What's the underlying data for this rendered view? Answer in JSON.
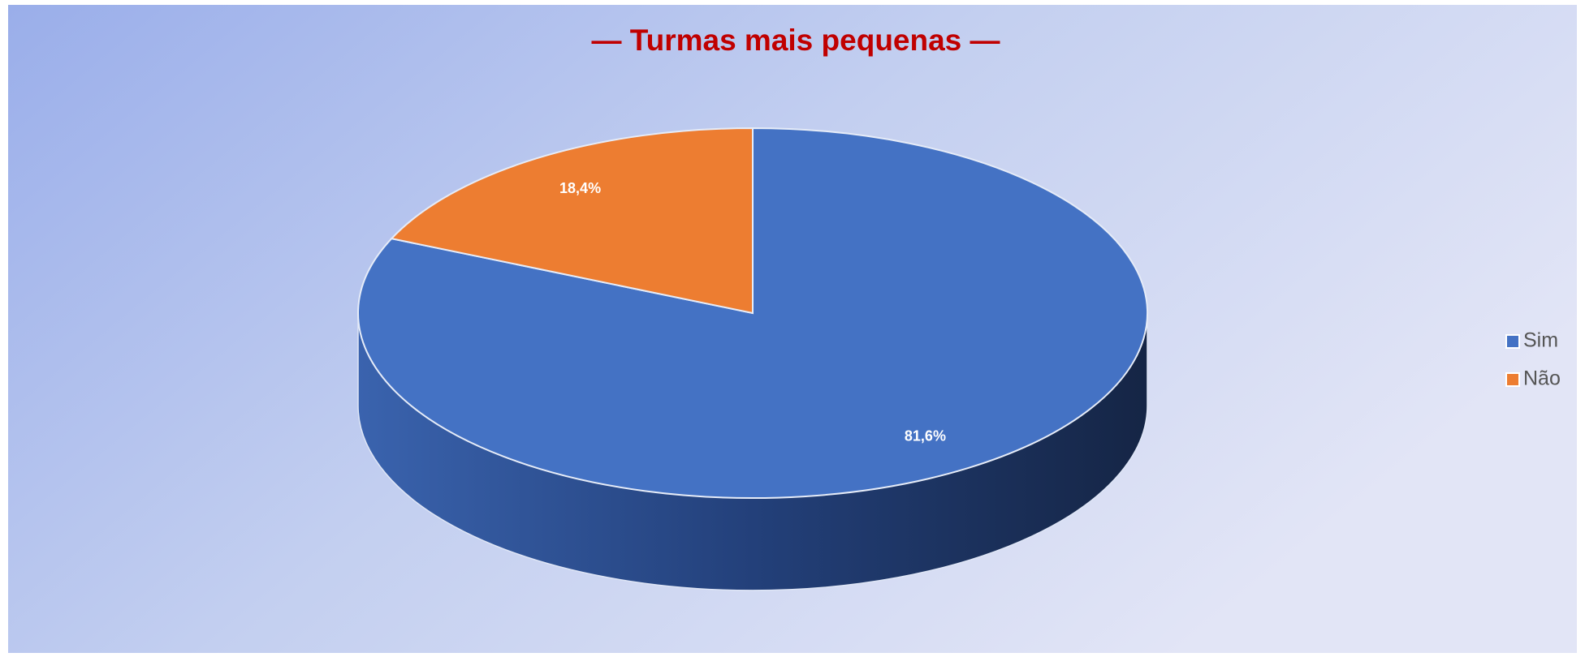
{
  "chart_data": {
    "type": "pie",
    "title": "— Turmas mais pequenas —",
    "categories": [
      "Sim",
      "Não"
    ],
    "values": [
      81.6,
      18.4
    ],
    "value_labels": [
      "81,6%",
      "18,4%"
    ],
    "colors": [
      "#4472c4",
      "#ed7d31"
    ],
    "legend": "right"
  }
}
